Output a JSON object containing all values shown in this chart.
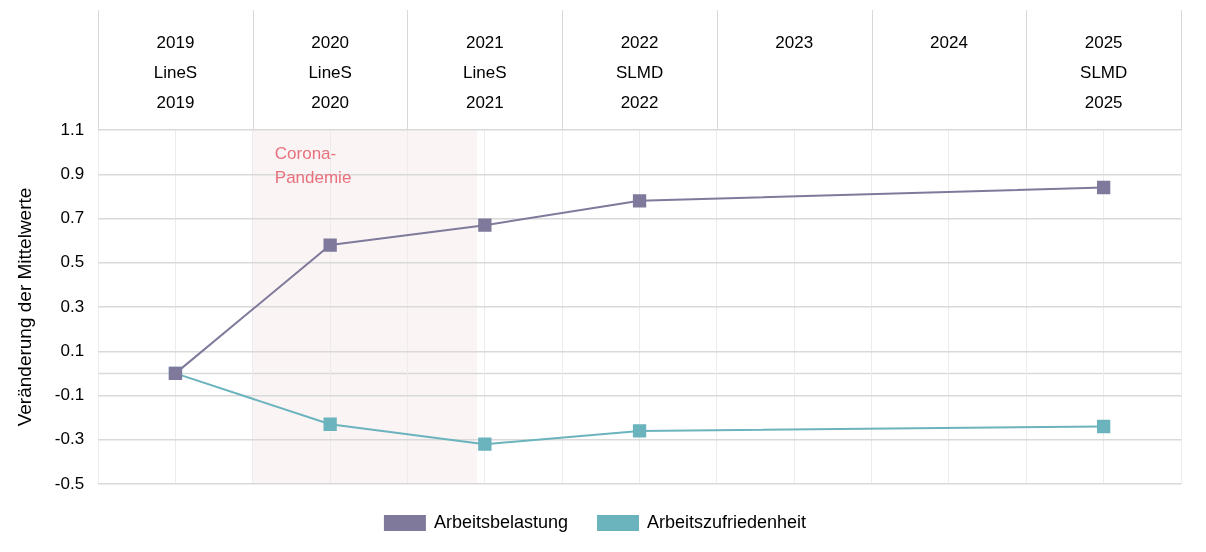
{
  "chart_data": {
    "type": "line",
    "ylabel": "Veränderung der Mittelwerte",
    "xlim": [
      2018.5,
      2025.5
    ],
    "xticks": [
      {
        "value": 2018.5,
        "label": null
      },
      {
        "value": 2019,
        "label": "2019\nLineS\n2019"
      },
      {
        "value": 2019.5,
        "label": null
      },
      {
        "value": 2020,
        "label": "2020\nLineS\n2020"
      },
      {
        "value": 2020.5,
        "label": null
      },
      {
        "value": 2021,
        "label": "2021\nLineS\n2021"
      },
      {
        "value": 2021.5,
        "label": null
      },
      {
        "value": 2022,
        "label": "2022\nSLMD\n2022"
      },
      {
        "value": 2022.5,
        "label": null
      },
      2023,
      {
        "value": 2023.5,
        "label": null
      },
      2024,
      {
        "value": 2024.5,
        "label": null
      },
      {
        "value": 2025,
        "label": "2025\nSLMD\n2025"
      },
      {
        "value": 2025.5,
        "label": null
      }
    ],
    "ylim": [
      -0.5,
      1.1
    ],
    "yticks": [
      -0.5,
      -0.3,
      -0.1,
      0.1,
      0.3,
      0.5,
      0.7,
      0.9,
      1.1
    ],
    "grid": true,
    "legend": "bottom",
    "marker": "square",
    "line_style": "solid",
    "series": [
      {
        "name": "Arbeitsbelastung",
        "color": "#7f7a9c",
        "x": [
          2019,
          2020,
          2021,
          2022,
          2025
        ],
        "values": [
          0,
          0.58,
          0.67,
          0.78,
          0.84
        ]
      },
      {
        "name": "Arbeitszufriedenheit",
        "color": "#6bb3bd",
        "x": [
          2019,
          2020,
          2021,
          2022,
          2025
        ],
        "values": [
          0,
          -0.23,
          -0.32,
          -0.26,
          -0.24
        ]
      }
    ],
    "bands": [
      {
        "axis": "x",
        "from": 2019.5,
        "to": 2020.95,
        "label": "Corona-Pandemie",
        "color": "#fbf4f5"
      }
    ],
    "ref_lines": [
      {
        "axis": "y",
        "value": 0,
        "color": "#d9d9d9"
      }
    ]
  }
}
